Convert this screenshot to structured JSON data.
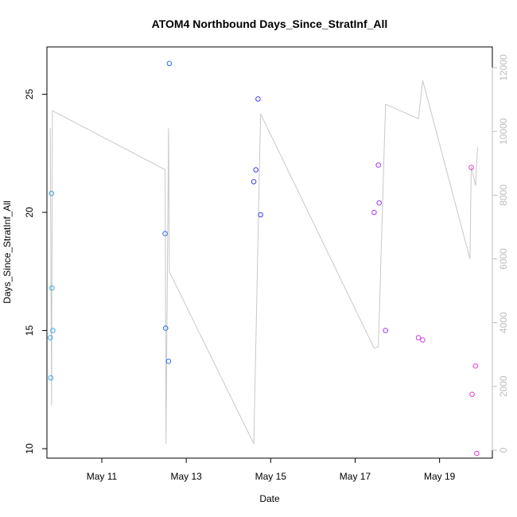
{
  "chart_data": {
    "type": "scatter",
    "title": "ATOM4 Northbound Days_Since_StratInf_All",
    "xlabel": "Date",
    "ylabel": "Days_Since_StratInf_All",
    "x_tick_labels": [
      "May 11",
      "May 13",
      "May 15",
      "May 17",
      "May 19"
    ],
    "x_tick_values": [
      11,
      13,
      15,
      17,
      19
    ],
    "xlim": [
      9.7,
      20.25
    ],
    "ylim": [
      9.6,
      27.0
    ],
    "y_ticks": [
      10,
      15,
      20,
      25
    ],
    "y2_ticks": [
      0,
      2000,
      4000,
      6000,
      8000,
      10000,
      12000
    ],
    "y2lim": [
      -250,
      12650
    ],
    "grid": false,
    "points": [
      {
        "x": 9.78,
        "y": 14.7,
        "color": "#3aa6f0"
      },
      {
        "x": 9.79,
        "y": 13.0,
        "color": "#3aa6f0"
      },
      {
        "x": 9.81,
        "y": 20.8,
        "color": "#3aa6f0"
      },
      {
        "x": 9.82,
        "y": 16.8,
        "color": "#3aa6f0"
      },
      {
        "x": 9.84,
        "y": 15.0,
        "color": "#3aa6f0"
      },
      {
        "x": 12.5,
        "y": 19.1,
        "color": "#2a73ec"
      },
      {
        "x": 12.51,
        "y": 15.1,
        "color": "#2a73ec"
      },
      {
        "x": 12.58,
        "y": 13.7,
        "color": "#2a73ec"
      },
      {
        "x": 12.6,
        "y": 26.3,
        "color": "#2a73ec"
      },
      {
        "x": 14.6,
        "y": 21.3,
        "color": "#3e3cea"
      },
      {
        "x": 14.65,
        "y": 21.8,
        "color": "#3e3cea"
      },
      {
        "x": 14.7,
        "y": 24.8,
        "color": "#3e3cea"
      },
      {
        "x": 14.76,
        "y": 19.9,
        "color": "#3e3cea"
      },
      {
        "x": 17.45,
        "y": 20.0,
        "color": "#9a3ef0"
      },
      {
        "x": 17.55,
        "y": 22.0,
        "color": "#9a3ef0"
      },
      {
        "x": 17.57,
        "y": 20.4,
        "color": "#9a3ef0"
      },
      {
        "x": 17.72,
        "y": 15.0,
        "color": "#9a3ef0"
      },
      {
        "x": 18.5,
        "y": 14.7,
        "color": "#c93ee8"
      },
      {
        "x": 18.6,
        "y": 14.6,
        "color": "#c93ee8"
      },
      {
        "x": 19.75,
        "y": 21.9,
        "color": "#e63ed8"
      },
      {
        "x": 19.77,
        "y": 12.3,
        "color": "#e63ed8"
      },
      {
        "x": 19.85,
        "y": 13.5,
        "color": "#e63ed8"
      },
      {
        "x": 19.88,
        "y": 9.8,
        "color": "#e63ed8"
      }
    ],
    "line_series": {
      "color": "#c8c8c8",
      "axis": "right",
      "x": [
        9.78,
        9.81,
        9.83,
        12.5,
        12.52,
        12.58,
        12.6,
        14.6,
        14.76,
        17.45,
        17.55,
        17.72,
        18.5,
        18.6,
        19.72,
        19.75,
        19.85,
        19.9
      ],
      "y": [
        10100,
        1400,
        10650,
        8800,
        200,
        10100,
        5600,
        200,
        10550,
        3200,
        3250,
        10850,
        10400,
        11600,
        6000,
        8900,
        8300,
        9500
      ]
    }
  }
}
